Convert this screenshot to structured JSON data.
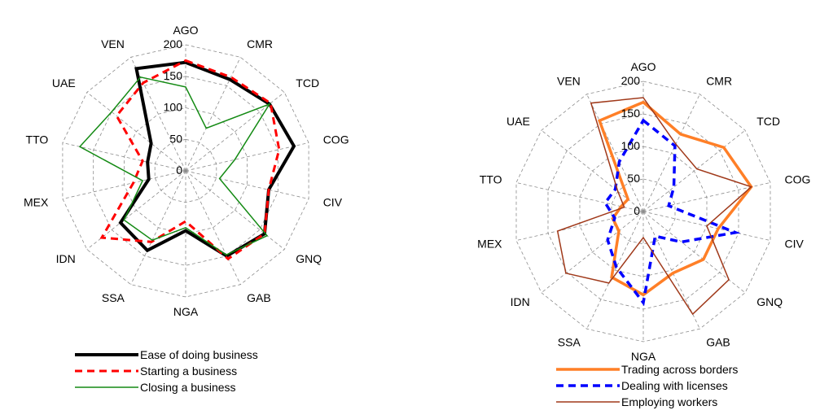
{
  "chart_data": [
    {
      "type": "radar",
      "categories": [
        "AGO",
        "CMR",
        "TCD",
        "COG",
        "CIV",
        "GNQ",
        "GAB",
        "NGA",
        "SSA",
        "IDN",
        "MEX",
        "TTO",
        "UAE",
        "VEN"
      ],
      "radial_ticks": [
        "0",
        "50",
        "100",
        "150",
        "200"
      ],
      "rlim": [
        0,
        200
      ],
      "grid": true,
      "legend_position": "bottom",
      "series": [
        {
          "name": "Ease of doing business",
          "color": "#000000",
          "dash": "solid",
          "width": 4,
          "values": [
            172,
            161,
            170,
            176,
            135,
            160,
            150,
            95,
            140,
            132,
            60,
            62,
            70,
            180
          ]
        },
        {
          "name": "Starting a business",
          "color": "#ff0000",
          "dash": "dashed",
          "width": 3,
          "values": [
            175,
            165,
            172,
            152,
            135,
            160,
            155,
            80,
            125,
            170,
            85,
            70,
            140,
            155
          ]
        },
        {
          "name": "Closing a business",
          "color": "#138a13",
          "dash": "solid",
          "width": 1.5,
          "values": [
            133,
            75,
            170,
            80,
            55,
            165,
            148,
            90,
            122,
            125,
            70,
            172,
            150,
            165
          ]
        }
      ]
    },
    {
      "type": "radar",
      "categories": [
        "AGO",
        "CMR",
        "TCD",
        "COG",
        "CIV",
        "GNQ",
        "GAB",
        "NGA",
        "SSA",
        "IDN",
        "MEX",
        "TTO",
        "UAE",
        "VEN"
      ],
      "radial_ticks": [
        "0",
        "50",
        "100",
        "150",
        "200"
      ],
      "rlim": [
        0,
        200
      ],
      "grid": true,
      "legend_position": "bottom",
      "series": [
        {
          "name": "Trading across borders",
          "color": "#ff7f27",
          "dash": "solid",
          "width": 3.5,
          "values": [
            168,
            132,
            158,
            170,
            118,
            118,
            105,
            128,
            112,
            48,
            48,
            35,
            30,
            155
          ]
        },
        {
          "name": "Dealing with licenses",
          "color": "#0000ff",
          "dash": "dashed",
          "width": 3.5,
          "values": [
            140,
            112,
            60,
            40,
            145,
            75,
            42,
            140,
            95,
            70,
            45,
            60,
            55,
            85
          ]
        },
        {
          "name": "Employing workers",
          "color": "#a0391a",
          "dash": "solid",
          "width": 1.5,
          "values": [
            175,
            115,
            105,
            170,
            100,
            168,
            175,
            40,
            122,
            152,
            135,
            30,
            50,
            185
          ]
        }
      ]
    }
  ]
}
